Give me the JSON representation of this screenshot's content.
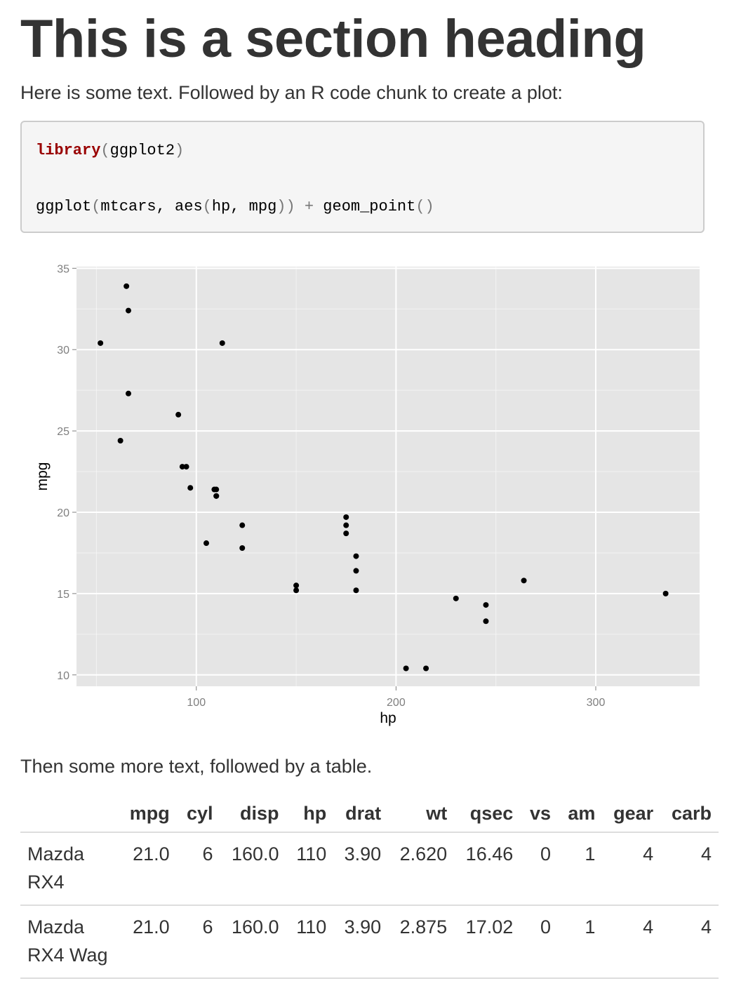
{
  "heading": "This is a section heading",
  "intro_text": "Here is some text. Followed by an R code chunk to create a plot:",
  "code": {
    "line1": {
      "fn": "library",
      "open": "(",
      "arg": "ggplot2",
      "close": ")"
    },
    "line2": {
      "part1": "ggplot",
      "p1": "(",
      "part2": "mtcars, ",
      "part3": "aes",
      "p2": "(",
      "part4": "hp, mpg",
      "p3": "))",
      "op": " + ",
      "part5": "geom_point",
      "p4": "()"
    }
  },
  "chart_data": {
    "type": "scatter",
    "xlabel": "hp",
    "ylabel": "mpg",
    "xlim": [
      40,
      352
    ],
    "ylim": [
      9.3,
      35.1
    ],
    "xticks": [
      100,
      200,
      300
    ],
    "yticks": [
      10,
      15,
      20,
      25,
      30,
      35
    ],
    "grid": true,
    "colors": {
      "panel": "#e5e5e5",
      "grid": "#ffffff",
      "point": "#000000"
    },
    "points": [
      {
        "x": 110,
        "y": 21.0
      },
      {
        "x": 110,
        "y": 21.0
      },
      {
        "x": 93,
        "y": 22.8
      },
      {
        "x": 110,
        "y": 21.4
      },
      {
        "x": 175,
        "y": 18.7
      },
      {
        "x": 105,
        "y": 18.1
      },
      {
        "x": 245,
        "y": 14.3
      },
      {
        "x": 62,
        "y": 24.4
      },
      {
        "x": 95,
        "y": 22.8
      },
      {
        "x": 123,
        "y": 19.2
      },
      {
        "x": 123,
        "y": 17.8
      },
      {
        "x": 180,
        "y": 16.4
      },
      {
        "x": 180,
        "y": 17.3
      },
      {
        "x": 180,
        "y": 15.2
      },
      {
        "x": 205,
        "y": 10.4
      },
      {
        "x": 215,
        "y": 10.4
      },
      {
        "x": 230,
        "y": 14.7
      },
      {
        "x": 66,
        "y": 32.4
      },
      {
        "x": 52,
        "y": 30.4
      },
      {
        "x": 65,
        "y": 33.9
      },
      {
        "x": 97,
        "y": 21.5
      },
      {
        "x": 150,
        "y": 15.5
      },
      {
        "x": 150,
        "y": 15.2
      },
      {
        "x": 245,
        "y": 13.3
      },
      {
        "x": 175,
        "y": 19.2
      },
      {
        "x": 66,
        "y": 27.3
      },
      {
        "x": 91,
        "y": 26.0
      },
      {
        "x": 113,
        "y": 30.4
      },
      {
        "x": 264,
        "y": 15.8
      },
      {
        "x": 175,
        "y": 19.7
      },
      {
        "x": 335,
        "y": 15.0
      },
      {
        "x": 109,
        "y": 21.4
      }
    ]
  },
  "more_text": "Then some more text, followed by a table.",
  "table": {
    "columns": [
      "",
      "mpg",
      "cyl",
      "disp",
      "hp",
      "drat",
      "wt",
      "qsec",
      "vs",
      "am",
      "gear",
      "carb"
    ],
    "rows": [
      [
        "Mazda RX4",
        "21.0",
        "6",
        "160.0",
        "110",
        "3.90",
        "2.620",
        "16.46",
        "0",
        "1",
        "4",
        "4"
      ],
      [
        "Mazda RX4 Wag",
        "21.0",
        "6",
        "160.0",
        "110",
        "3.90",
        "2.875",
        "17.02",
        "0",
        "1",
        "4",
        "4"
      ]
    ]
  }
}
